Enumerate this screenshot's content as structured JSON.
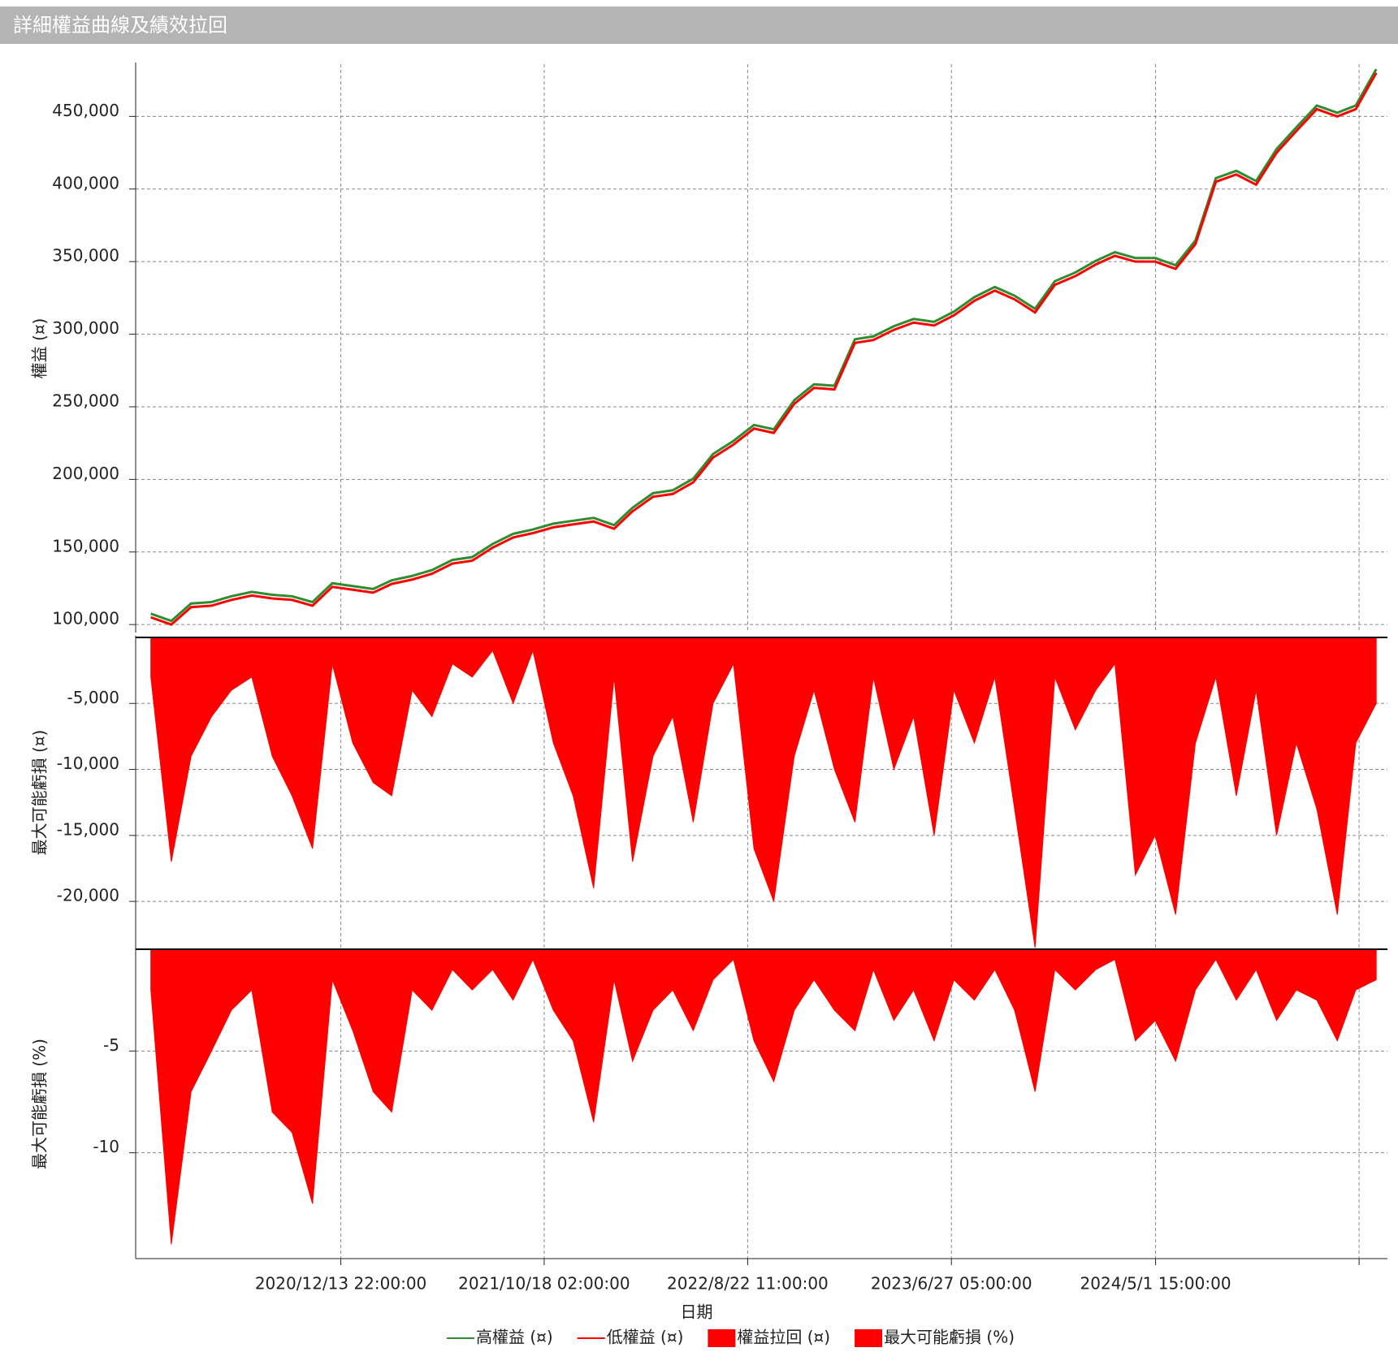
{
  "window_title": "詳細權益曲線及績效拉回",
  "chart_data": [
    {
      "type": "line",
      "ylabel": "權益 (¤)",
      "x": [
        "2020/3/1",
        "2020/4/1",
        "2020/5/1",
        "2020/6/1",
        "2020/7/1",
        "2020/8/1",
        "2020/9/1",
        "2020/10/1",
        "2020/11/1",
        "2020/12/1",
        "2021/1/1",
        "2021/2/1",
        "2021/3/1",
        "2021/4/1",
        "2021/5/1",
        "2021/6/1",
        "2021/7/1",
        "2021/8/1",
        "2021/9/1",
        "2021/10/1",
        "2021/11/1",
        "2021/12/1",
        "2022/1/1",
        "2022/2/1",
        "2022/3/1",
        "2022/4/1",
        "2022/5/1",
        "2022/6/1",
        "2022/7/1",
        "2022/8/1",
        "2022/9/1",
        "2022/10/1",
        "2022/11/1",
        "2022/12/1",
        "2023/1/1",
        "2023/2/1",
        "2023/3/1",
        "2023/4/1",
        "2023/5/1",
        "2023/6/1",
        "2023/7/1",
        "2023/8/1",
        "2023/9/1",
        "2023/10/1",
        "2023/11/1",
        "2023/12/1",
        "2024/1/1",
        "2024/2/1",
        "2024/3/1",
        "2024/4/1",
        "2024/5/1",
        "2024/6/1",
        "2024/7/1",
        "2024/8/1",
        "2024/9/1",
        "2024/10/1",
        "2024/11/1",
        "2024/12/1",
        "2025/1/1",
        "2025/2/1",
        "2025/3/1",
        "2025/4/1"
      ],
      "series": [
        {
          "name": "高權益 (¤)",
          "color": "#2e8b2e",
          "values": [
            107500,
            102500,
            114500,
            115500,
            119500,
            122500,
            120500,
            119500,
            115500,
            128500,
            126500,
            124500,
            130500,
            133500,
            137500,
            144500,
            146500,
            155500,
            162500,
            165500,
            169500,
            171500,
            173500,
            168500,
            180500,
            190500,
            192500,
            200500,
            217500,
            226500,
            237500,
            234500,
            254500,
            265500,
            264500,
            296500,
            298500,
            305500,
            310500,
            308500,
            315500,
            325500,
            332500,
            326500,
            317500,
            336500,
            342500,
            350500,
            356500,
            352500,
            352500,
            347500,
            364500,
            407500,
            412500,
            405500,
            427500,
            442500,
            457500,
            452500,
            457500,
            482500
          ]
        },
        {
          "name": "低權益 (¤)",
          "color": "#ff0000",
          "values": [
            105000,
            100000,
            112000,
            113000,
            117000,
            120000,
            118000,
            117000,
            113000,
            126000,
            124000,
            122000,
            128000,
            131000,
            135000,
            142000,
            144000,
            153000,
            160000,
            163000,
            167000,
            169000,
            171000,
            166000,
            178000,
            188000,
            190000,
            198000,
            215000,
            224000,
            235000,
            232000,
            252000,
            263000,
            262000,
            294000,
            296000,
            303000,
            308000,
            306000,
            313000,
            323000,
            330000,
            324000,
            315000,
            334000,
            340000,
            348000,
            354000,
            350000,
            350000,
            345000,
            362000,
            405000,
            410000,
            403000,
            425000,
            440000,
            455000,
            450000,
            455000,
            480000
          ]
        }
      ],
      "ylim": [
        94500,
        486000
      ],
      "yticks": [
        {
          "value": 100000,
          "label": "100,000"
        },
        {
          "value": 150000,
          "label": "150,000"
        },
        {
          "value": 200000,
          "label": "200,000"
        },
        {
          "value": 250000,
          "label": "250,000"
        },
        {
          "value": 300000,
          "label": "300,000"
        },
        {
          "value": 350000,
          "label": "350,000"
        },
        {
          "value": 400000,
          "label": "400,000"
        },
        {
          "value": 450000,
          "label": "450,000"
        }
      ],
      "grid": true
    },
    {
      "type": "area",
      "ylabel": "最大可能虧損 (¤)",
      "x": [
        "2020/3/1",
        "2020/4/1",
        "2020/5/1",
        "2020/6/1",
        "2020/7/1",
        "2020/8/1",
        "2020/9/1",
        "2020/10/1",
        "2020/11/1",
        "2020/12/1",
        "2021/1/1",
        "2021/2/1",
        "2021/3/1",
        "2021/4/1",
        "2021/5/1",
        "2021/6/1",
        "2021/7/1",
        "2021/8/1",
        "2021/9/1",
        "2021/10/1",
        "2021/11/1",
        "2021/12/1",
        "2022/1/1",
        "2022/2/1",
        "2022/3/1",
        "2022/4/1",
        "2022/5/1",
        "2022/6/1",
        "2022/7/1",
        "2022/8/1",
        "2022/9/1",
        "2022/10/1",
        "2022/11/1",
        "2022/12/1",
        "2023/1/1",
        "2023/2/1",
        "2023/3/1",
        "2023/4/1",
        "2023/5/1",
        "2023/6/1",
        "2023/7/1",
        "2023/8/1",
        "2023/9/1",
        "2023/10/1",
        "2023/11/1",
        "2023/12/1",
        "2024/1/1",
        "2024/2/1",
        "2024/3/1",
        "2024/4/1",
        "2024/5/1",
        "2024/6/1",
        "2024/7/1",
        "2024/8/1",
        "2024/9/1",
        "2024/10/1",
        "2024/11/1",
        "2024/12/1",
        "2025/1/1",
        "2025/2/1",
        "2025/3/1",
        "2025/4/1"
      ],
      "series": [
        {
          "name": "權益拉回 (¤)",
          "color": "#ff0000",
          "values": [
            -3000,
            -17000,
            -9000,
            -6000,
            -4000,
            -3000,
            -9000,
            -12000,
            -16000,
            -2000,
            -8000,
            -11000,
            -12000,
            -4000,
            -6000,
            -2000,
            -3000,
            -1000,
            -5000,
            -1000,
            -8000,
            -12000,
            -19000,
            -3000,
            -17000,
            -9000,
            -6000,
            -14000,
            -5000,
            -2000,
            -16000,
            -20000,
            -9000,
            -4000,
            -10000,
            -14000,
            -3000,
            -10000,
            -6000,
            -15000,
            -4000,
            -8000,
            -3000,
            -13000,
            -23500,
            -3000,
            -7000,
            -4000,
            -2000,
            -18000,
            -15000,
            -21000,
            -8000,
            -3000,
            -12000,
            -4000,
            -15000,
            -8000,
            -13000,
            -21000,
            -8000,
            -5000
          ]
        }
      ],
      "ylim": [
        -23500,
        0
      ],
      "yticks": [
        {
          "value": -20000,
          "label": "-20,000"
        },
        {
          "value": -15000,
          "label": "-15,000"
        },
        {
          "value": -10000,
          "label": "-10,000"
        },
        {
          "value": -5000,
          "label": "-5,000"
        }
      ],
      "grid": true
    },
    {
      "type": "area",
      "ylabel": "最大可能虧損 (%)",
      "xlabel": "日期",
      "x": [
        "2020/3/1",
        "2020/4/1",
        "2020/5/1",
        "2020/6/1",
        "2020/7/1",
        "2020/8/1",
        "2020/9/1",
        "2020/10/1",
        "2020/11/1",
        "2020/12/1",
        "2021/1/1",
        "2021/2/1",
        "2021/3/1",
        "2021/4/1",
        "2021/5/1",
        "2021/6/1",
        "2021/7/1",
        "2021/8/1",
        "2021/9/1",
        "2021/10/1",
        "2021/11/1",
        "2021/12/1",
        "2022/1/1",
        "2022/2/1",
        "2022/3/1",
        "2022/4/1",
        "2022/5/1",
        "2022/6/1",
        "2022/7/1",
        "2022/8/1",
        "2022/9/1",
        "2022/10/1",
        "2022/11/1",
        "2022/12/1",
        "2023/1/1",
        "2023/2/1",
        "2023/3/1",
        "2023/4/1",
        "2023/5/1",
        "2023/6/1",
        "2023/7/1",
        "2023/8/1",
        "2023/9/1",
        "2023/10/1",
        "2023/11/1",
        "2023/12/1",
        "2024/1/1",
        "2024/2/1",
        "2024/3/1",
        "2024/4/1",
        "2024/5/1",
        "2024/6/1",
        "2024/7/1",
        "2024/8/1",
        "2024/9/1",
        "2024/10/1",
        "2024/11/1",
        "2024/12/1",
        "2025/1/1",
        "2025/2/1",
        "2025/3/1",
        "2025/4/1"
      ],
      "series": [
        {
          "name": "最大可能虧損 (%)",
          "color": "#ff0000",
          "values": [
            -2,
            -14.5,
            -7,
            -5,
            -3,
            -2,
            -8,
            -9,
            -12.5,
            -1.5,
            -4,
            -7,
            -8,
            -2,
            -3,
            -1,
            -2,
            -1,
            -2.5,
            -0.5,
            -3,
            -4.5,
            -8.5,
            -1.5,
            -5.5,
            -3,
            -2,
            -4,
            -1.5,
            -0.5,
            -4.5,
            -6.5,
            -3,
            -1.5,
            -3,
            -4,
            -1,
            -3.5,
            -2,
            -4.5,
            -1.5,
            -2.5,
            -1,
            -3,
            -7,
            -1,
            -2,
            -1,
            -0.5,
            -4.5,
            -3.5,
            -5.5,
            -2,
            -0.5,
            -2.5,
            -1,
            -3.5,
            -2,
            -2.5,
            -4.5,
            -2,
            -1.5
          ]
        }
      ],
      "ylim": [
        -15.2,
        0
      ],
      "yticks": [
        -10,
        -5
      ],
      "xlim": [
        "2020/2/7 00:00:00",
        "2025/4/18 00:00:00"
      ],
      "xticks": [
        {
          "value": "2020/12/13 22:00:00",
          "label": "2020/12/13 22:00:00"
        },
        {
          "value": "2021/10/18 02:00:00",
          "label": "2021/10/18 02:00:00"
        },
        {
          "value": "2022/8/22 11:00:00",
          "label": "2022/8/22 11:00:00"
        },
        {
          "value": "2023/6/27 05:00:00",
          "label": "2023/6/27 05:00:00"
        },
        {
          "value": "2024/5/1 15:00:00",
          "label": "2024/5/1 15:00:00"
        },
        {
          "value": "2025/3/6 01:00:00",
          "label": null
        }
      ],
      "grid": true
    }
  ]
}
